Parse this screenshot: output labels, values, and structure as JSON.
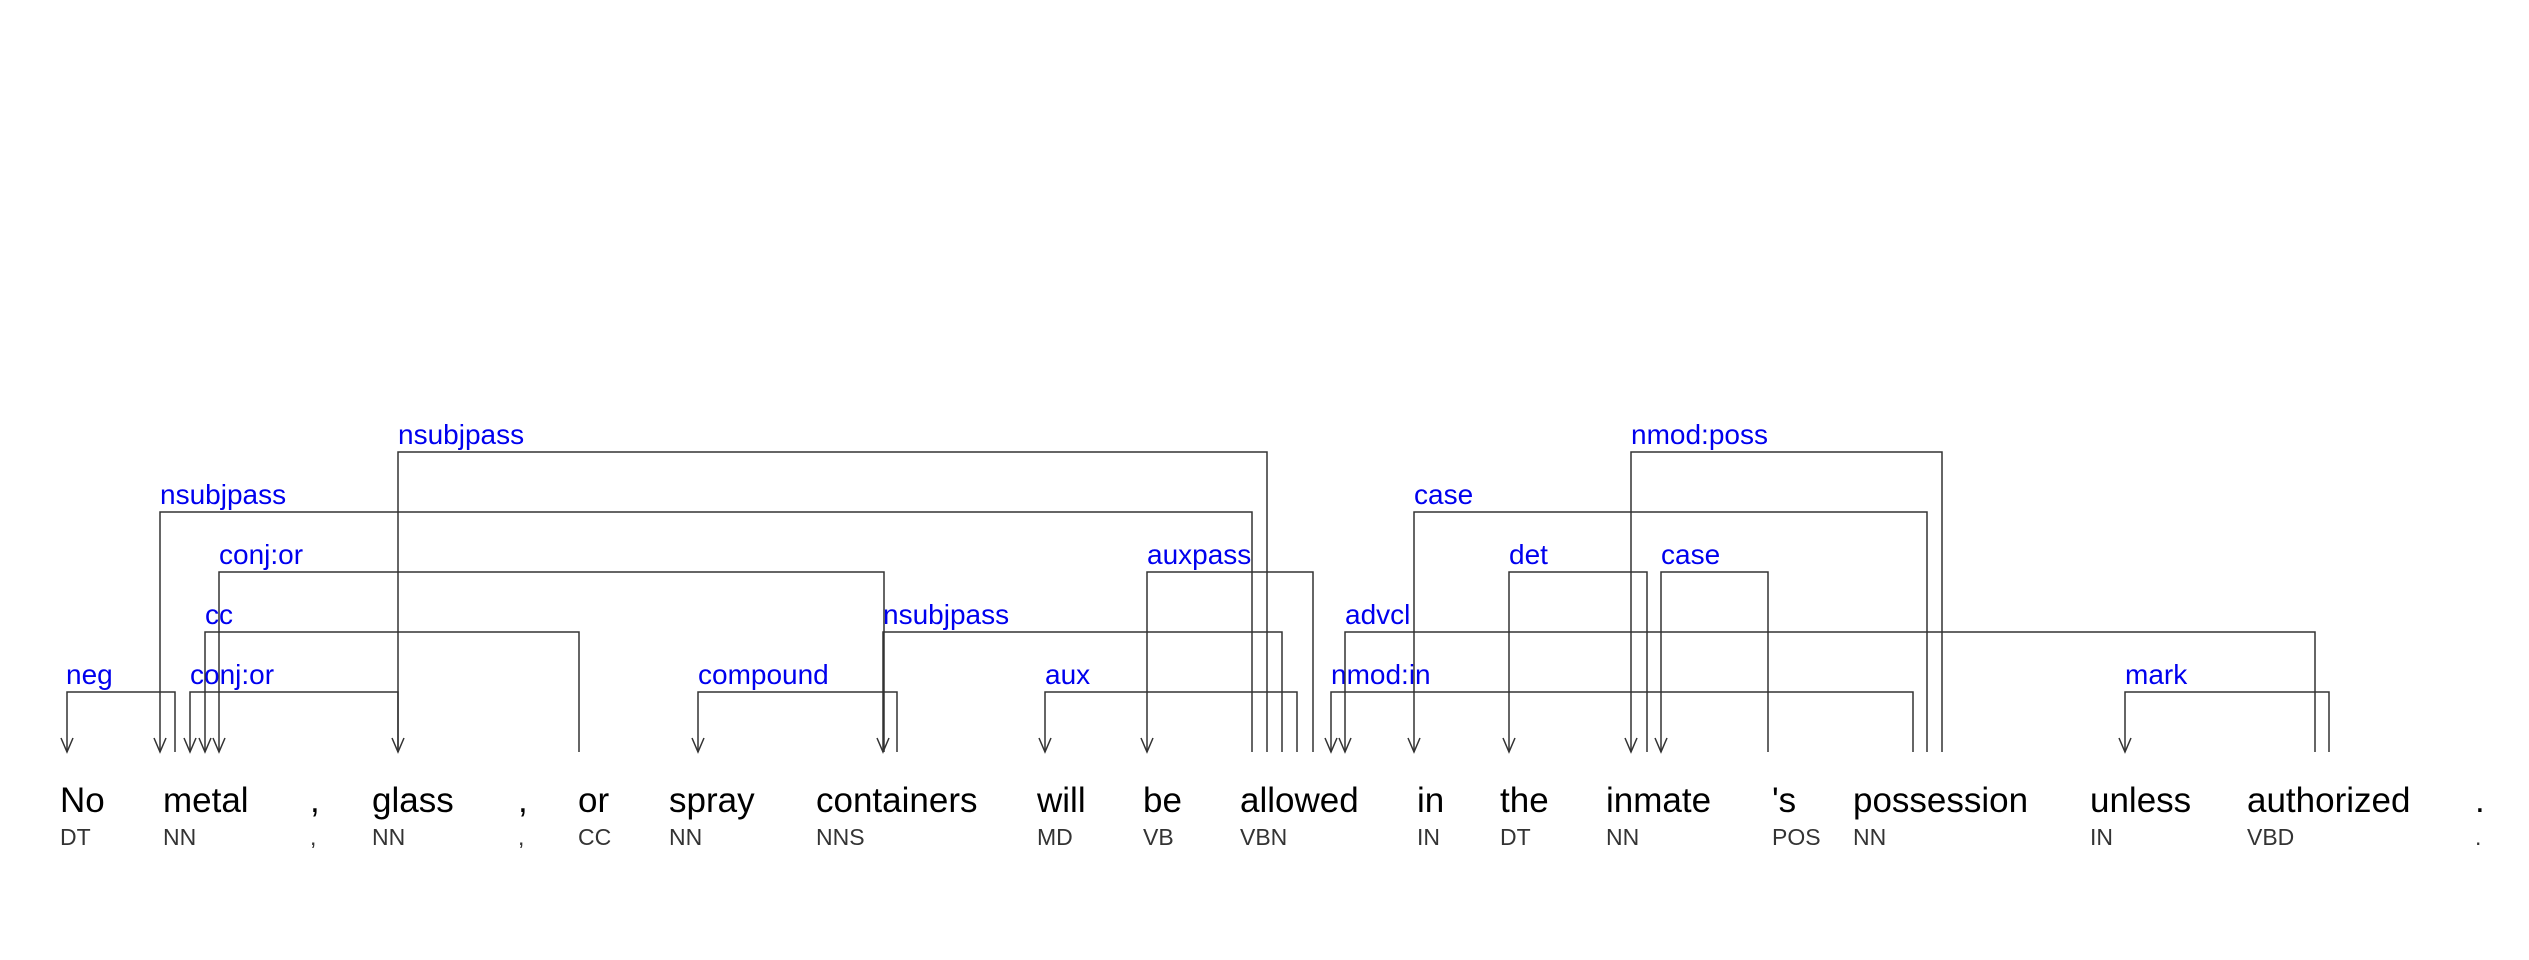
{
  "colors": {
    "label": "#0000ee",
    "line": "#333333",
    "word": "#000000",
    "tag": "#333333"
  },
  "tokens": [
    {
      "word": "No",
      "tag": "DT"
    },
    {
      "word": "metal",
      "tag": "NN"
    },
    {
      "word": ",",
      "tag": ","
    },
    {
      "word": "glass",
      "tag": "NN"
    },
    {
      "word": ",",
      "tag": ","
    },
    {
      "word": "or",
      "tag": "CC"
    },
    {
      "word": "spray",
      "tag": "NN"
    },
    {
      "word": "containers",
      "tag": "NNS"
    },
    {
      "word": "will",
      "tag": "MD"
    },
    {
      "word": "be",
      "tag": "VB"
    },
    {
      "word": "allowed",
      "tag": "VBN"
    },
    {
      "word": "in",
      "tag": "IN"
    },
    {
      "word": "the",
      "tag": "DT"
    },
    {
      "word": "inmate",
      "tag": "NN"
    },
    {
      "word": "'s",
      "tag": "POS"
    },
    {
      "word": "possession",
      "tag": "NN"
    },
    {
      "word": "unless",
      "tag": "IN"
    },
    {
      "word": "authorized",
      "tag": "VBD"
    },
    {
      "word": ".",
      "tag": "."
    }
  ],
  "arcs": [
    {
      "label": "neg",
      "head": 1,
      "dep": 0
    },
    {
      "label": "conj:or",
      "head": 3,
      "dep": 1
    },
    {
      "label": "cc",
      "head": 5,
      "dep": 1
    },
    {
      "label": "conj:or",
      "head": 7,
      "dep": 1
    },
    {
      "label": "nsubjpass",
      "head": 10,
      "dep": 1
    },
    {
      "label": "nsubjpass",
      "head": 10,
      "dep": 3
    },
    {
      "label": "compound",
      "head": 7,
      "dep": 6
    },
    {
      "label": "nsubjpass",
      "head": 10,
      "dep": 7
    },
    {
      "label": "aux",
      "head": 10,
      "dep": 8
    },
    {
      "label": "auxpass",
      "head": 10,
      "dep": 9
    },
    {
      "label": "nmod:in",
      "head": 10,
      "dep": 15
    },
    {
      "label": "advcl",
      "head": 10,
      "dep": 17
    },
    {
      "label": "case",
      "head": 15,
      "dep": 11
    },
    {
      "label": "det",
      "head": 13,
      "dep": 12
    },
    {
      "label": "nmod:poss",
      "head": 15,
      "dep": 13
    },
    {
      "label": "case",
      "head": 13,
      "dep": 14
    },
    {
      "label": "mark",
      "head": 17,
      "dep": 16
    }
  ]
}
